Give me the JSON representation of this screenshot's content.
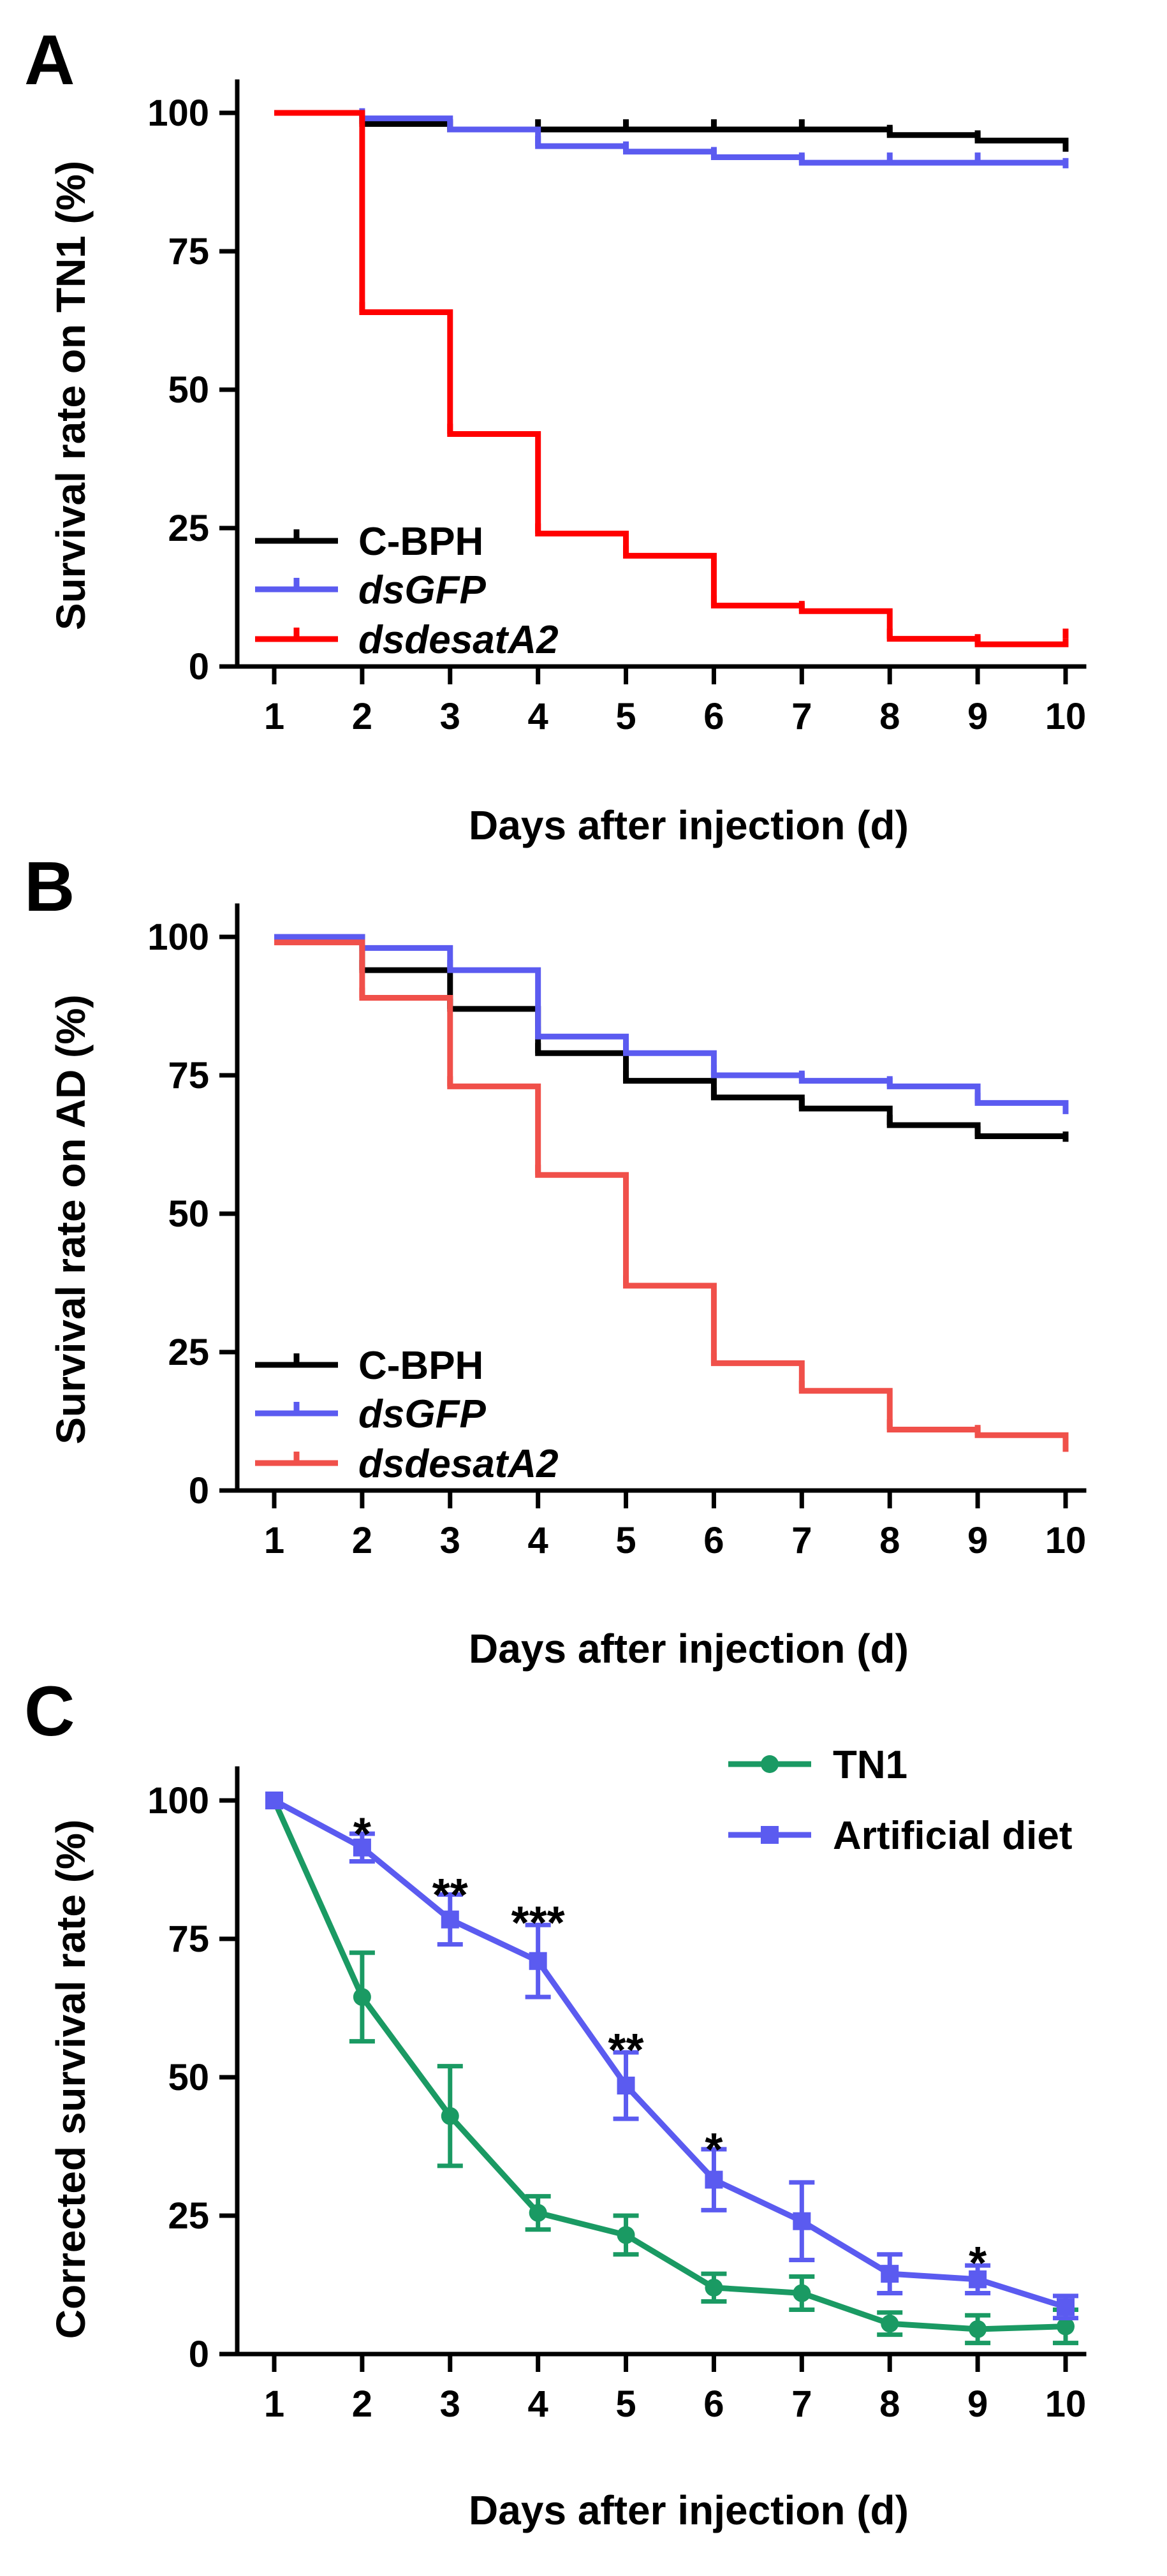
{
  "colors": {
    "c_bph": "#000000",
    "dsgfp": "#5b5bf0",
    "dsdesat_a": "#ff0000",
    "dsdesat_b": "#f0504a",
    "tn1": "#1a9a63",
    "artificial": "#5b5bf0"
  },
  "chart_data": [
    {
      "panel": "A",
      "type": "line",
      "subtype": "kaplan-meier step",
      "xlabel": "Days after injection (d)",
      "ylabel": "Survival rate on TN1 (%)",
      "xlim": [
        1,
        10
      ],
      "ylim": [
        0,
        100
      ],
      "xticks": [
        1,
        2,
        3,
        4,
        5,
        6,
        7,
        8,
        9,
        10
      ],
      "yticks": [
        0,
        25,
        50,
        75,
        100
      ],
      "legend_position": "bottom-left",
      "series": [
        {
          "name": "C-BPH",
          "italic": false,
          "color_key": "c_bph",
          "x": [
            1,
            2,
            3,
            4,
            5,
            6,
            7,
            8,
            9,
            10
          ],
          "y": [
            100,
            98,
            97,
            97,
            97,
            97,
            97,
            96,
            95,
            93
          ]
        },
        {
          "name": "dsGFP",
          "italic": true,
          "color_key": "dsgfp",
          "x": [
            1,
            2,
            3,
            4,
            5,
            6,
            7,
            8,
            9,
            10
          ],
          "y": [
            100,
            99,
            97,
            94,
            93,
            92,
            91,
            91,
            91,
            90
          ]
        },
        {
          "name": "dsdesatA2",
          "italic": true,
          "color_key": "dsdesat_a",
          "x": [
            1,
            2,
            3,
            4,
            5,
            6,
            7,
            8,
            9,
            10
          ],
          "y": [
            100,
            64,
            42,
            24,
            20,
            11,
            10,
            5,
            4,
            5
          ]
        }
      ]
    },
    {
      "panel": "B",
      "type": "line",
      "subtype": "kaplan-meier step",
      "xlabel": "Days after injection (d)",
      "ylabel": "Survival rate on AD (%)",
      "xlim": [
        1,
        10
      ],
      "ylim": [
        0,
        100
      ],
      "xticks": [
        1,
        2,
        3,
        4,
        5,
        6,
        7,
        8,
        9,
        10
      ],
      "yticks": [
        0,
        25,
        50,
        75,
        100
      ],
      "legend_position": "bottom-left",
      "series": [
        {
          "name": "C-BPH",
          "italic": false,
          "color_key": "c_bph",
          "x": [
            1,
            2,
            3,
            4,
            5,
            6,
            7,
            8,
            9,
            10
          ],
          "y": [
            100,
            94,
            87,
            79,
            74,
            71,
            69,
            66,
            64,
            63
          ]
        },
        {
          "name": "dsGFP",
          "italic": true,
          "color_key": "dsgfp",
          "x": [
            1,
            2,
            3,
            4,
            5,
            6,
            7,
            8,
            9,
            10
          ],
          "y": [
            100,
            98,
            94,
            82,
            79,
            75,
            74,
            73,
            70,
            68
          ]
        },
        {
          "name": "dsdesatA2",
          "italic": true,
          "color_key": "dsdesat_b",
          "x": [
            1,
            2,
            3,
            4,
            5,
            6,
            7,
            8,
            9,
            10
          ],
          "y": [
            99,
            89,
            73,
            57,
            37,
            23,
            18,
            11,
            10,
            7
          ]
        }
      ]
    },
    {
      "panel": "C",
      "type": "line",
      "subtype": "line with error bars",
      "xlabel": "Days after injection (d)",
      "ylabel": "Corrected survival rate (%)",
      "xlim": [
        1,
        10
      ],
      "ylim": [
        0,
        100
      ],
      "xticks": [
        1,
        2,
        3,
        4,
        5,
        6,
        7,
        8,
        9,
        10
      ],
      "yticks": [
        0,
        25,
        50,
        75,
        100
      ],
      "legend_position": "top-right",
      "series": [
        {
          "name": "TN1",
          "marker": "circle",
          "color_key": "tn1",
          "x": [
            1,
            2,
            3,
            4,
            5,
            6,
            7,
            8,
            9,
            10
          ],
          "y": [
            100,
            64.5,
            43,
            25.5,
            21.5,
            12,
            11,
            5.5,
            4.5,
            5
          ],
          "err": [
            0,
            8,
            9,
            3,
            3.5,
            2.5,
            3,
            2,
            2.5,
            3
          ]
        },
        {
          "name": "Artificial diet",
          "marker": "square",
          "color_key": "artificial",
          "x": [
            1,
            2,
            3,
            4,
            5,
            6,
            7,
            8,
            9,
            10
          ],
          "y": [
            100,
            91.5,
            78.5,
            71,
            48.5,
            31.5,
            24,
            14.5,
            13.5,
            8.5
          ],
          "err": [
            0,
            2.5,
            4.5,
            6.5,
            6,
            5.5,
            7,
            3.5,
            2.5,
            2
          ]
        }
      ],
      "significance": [
        {
          "x": 2,
          "label": "*",
          "y": 95
        },
        {
          "x": 3,
          "label": "**",
          "y": 84
        },
        {
          "x": 4,
          "label": "***",
          "y": 79
        },
        {
          "x": 5,
          "label": "**",
          "y": 56
        },
        {
          "x": 6,
          "label": "*",
          "y": 38
        },
        {
          "x": 9,
          "label": "*",
          "y": 17.5
        }
      ]
    }
  ]
}
